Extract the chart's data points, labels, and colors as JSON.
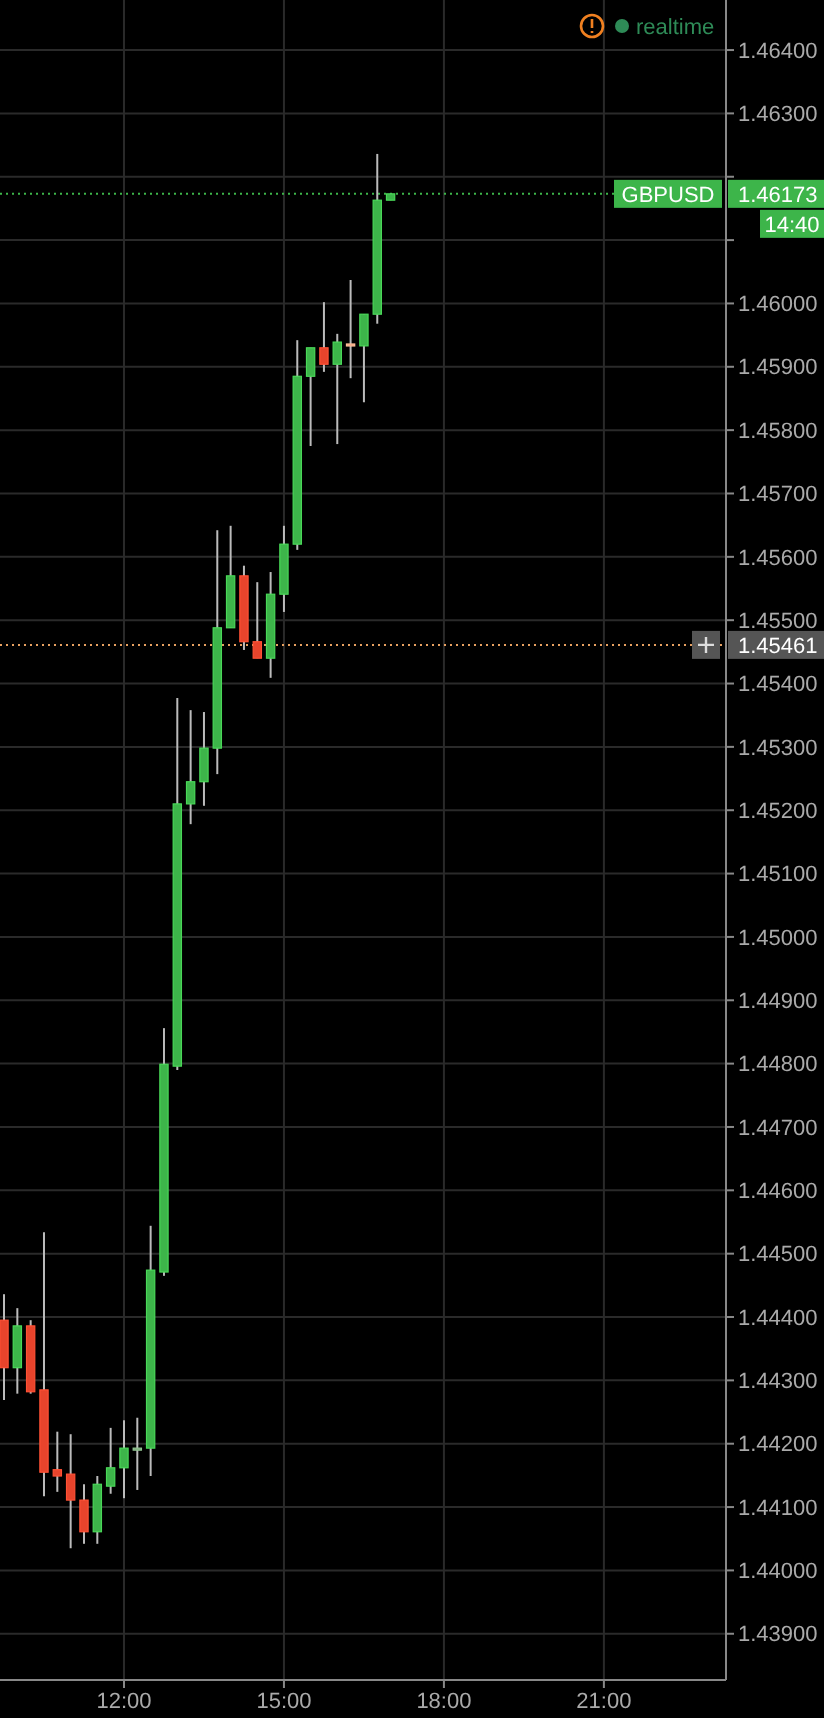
{
  "chart_data": {
    "type": "candlestick",
    "x": [
      9.75,
      10,
      10.25,
      10.5,
      10.75,
      11,
      11.25,
      11.5,
      11.75,
      12,
      12.25,
      12.5,
      12.75,
      13,
      13.25,
      13.5,
      13.75,
      14,
      14.25,
      14.5,
      14.75,
      15,
      15.25,
      15.5,
      15.75,
      16,
      16.25,
      16.5,
      16.75,
      17
    ],
    "ohlc": [
      [
        1.44395,
        1.44436,
        1.44269,
        1.4432
      ],
      [
        1.4432,
        1.44414,
        1.44279,
        1.44386
      ],
      [
        1.44386,
        1.44395,
        1.44279,
        1.44282
      ],
      [
        1.44285,
        1.44534,
        1.44117,
        1.44155
      ],
      [
        1.44159,
        1.44219,
        1.44124,
        1.44149
      ],
      [
        1.44152,
        1.44215,
        1.44035,
        1.44111
      ],
      [
        1.44111,
        1.44136,
        1.44042,
        1.44061
      ],
      [
        1.44061,
        1.44149,
        1.44042,
        1.44136
      ],
      [
        1.44133,
        1.44225,
        1.44121,
        1.44162
      ],
      [
        1.44162,
        1.44237,
        1.44114,
        1.44193
      ],
      [
        1.44193,
        1.44241,
        1.44127,
        1.44193
      ],
      [
        1.44193,
        1.44544,
        1.44149,
        1.44474
      ],
      [
        1.44471,
        1.44856,
        1.44465,
        1.44799
      ],
      [
        1.44796,
        1.45377,
        1.4479,
        1.4521
      ],
      [
        1.4521,
        1.45358,
        1.45178,
        1.45245
      ],
      [
        1.45245,
        1.45355,
        1.45207,
        1.45298
      ],
      [
        1.45298,
        1.45642,
        1.45257,
        1.45488
      ],
      [
        1.45488,
        1.45649,
        1.45488,
        1.4557
      ],
      [
        1.4557,
        1.45586,
        1.45453,
        1.45466
      ],
      [
        1.45466,
        1.4556,
        1.4544,
        1.4544
      ],
      [
        1.4544,
        1.45576,
        1.45409,
        1.45541
      ],
      [
        1.45541,
        1.45649,
        1.45513,
        1.4562
      ],
      [
        1.4562,
        1.45942,
        1.45611,
        1.45885
      ],
      [
        1.45885,
        1.4593,
        1.45775,
        1.4593
      ],
      [
        1.4593,
        1.46002,
        1.45892,
        1.45904
      ],
      [
        1.45904,
        1.45952,
        1.45778,
        1.45939
      ],
      [
        1.45936,
        1.46037,
        1.45882,
        1.45936
      ],
      [
        1.45933,
        1.45983,
        1.45844,
        1.45983
      ],
      [
        1.45983,
        1.46236,
        1.45968,
        1.46163
      ],
      [
        1.46163,
        1.46173,
        1.46163,
        1.46173
      ]
    ],
    "colors": [
      "#e8442c",
      "#3db54a",
      "#e8442c",
      "#e8442c",
      "#e8442c",
      "#e8442c",
      "#e8442c",
      "#3db54a",
      "#3db54a",
      "#3db54a",
      "#7aa57a",
      "#3db54a",
      "#3db54a",
      "#3db54a",
      "#3db54a",
      "#3db54a",
      "#3db54a",
      "#3db54a",
      "#e8442c",
      "#e8442c",
      "#3db54a",
      "#3db54a",
      "#3db54a",
      "#3db54a",
      "#e8442c",
      "#3db54a",
      "#f0a080",
      "#3db54a",
      "#3db54a",
      "#3db54a"
    ],
    "xlim": [
      9.675,
      23.29
    ],
    "xticks": [
      {
        "value": 12,
        "label": "12:00"
      },
      {
        "value": 15,
        "label": "15:00"
      },
      {
        "value": 18,
        "label": "18:00"
      },
      {
        "value": 21,
        "label": "21:00"
      }
    ],
    "ylim": [
      1.43827,
      1.46479
    ],
    "yticks": [
      {
        "value": 1.439,
        "label": "1.43900"
      },
      {
        "value": 1.44,
        "label": "1.44000"
      },
      {
        "value": 1.441,
        "label": "1.44100"
      },
      {
        "value": 1.442,
        "label": "1.44200"
      },
      {
        "value": 1.443,
        "label": "1.44300"
      },
      {
        "value": 1.444,
        "label": "1.44400"
      },
      {
        "value": 1.445,
        "label": "1.44500"
      },
      {
        "value": 1.446,
        "label": "1.44600"
      },
      {
        "value": 1.447,
        "label": "1.44700"
      },
      {
        "value": 1.448,
        "label": "1.44800"
      },
      {
        "value": 1.449,
        "label": "1.44900"
      },
      {
        "value": 1.45,
        "label": "1.45000"
      },
      {
        "value": 1.451,
        "label": "1.45100"
      },
      {
        "value": 1.452,
        "label": "1.45200"
      },
      {
        "value": 1.453,
        "label": "1.45300"
      },
      {
        "value": 1.454,
        "label": "1.45400"
      },
      {
        "value": 1.455,
        "label": "1.45500"
      },
      {
        "value": 1.456,
        "label": "1.45600"
      },
      {
        "value": 1.457,
        "label": "1.45700"
      },
      {
        "value": 1.458,
        "label": "1.45800"
      },
      {
        "value": 1.459,
        "label": "1.45900"
      },
      {
        "value": 1.46,
        "label": "1.46000"
      },
      {
        "value": 1.461,
        "label": null
      },
      {
        "value": 1.462,
        "label": null
      },
      {
        "value": 1.463,
        "label": "1.46300"
      },
      {
        "value": 1.464,
        "label": "1.46400"
      }
    ],
    "grid": true,
    "ref_lines": [
      {
        "axis": "y",
        "value": 1.46173,
        "label": "GBPUSD",
        "color": "#3db54a",
        "line_style": "dotted"
      },
      {
        "axis": "y",
        "value": 1.45461,
        "label": null,
        "color": "#e8a060",
        "line_style": "dotted"
      }
    ],
    "annotations": [
      "14:40",
      "realtime",
      "1.46173",
      "1.45461"
    ]
  }
}
